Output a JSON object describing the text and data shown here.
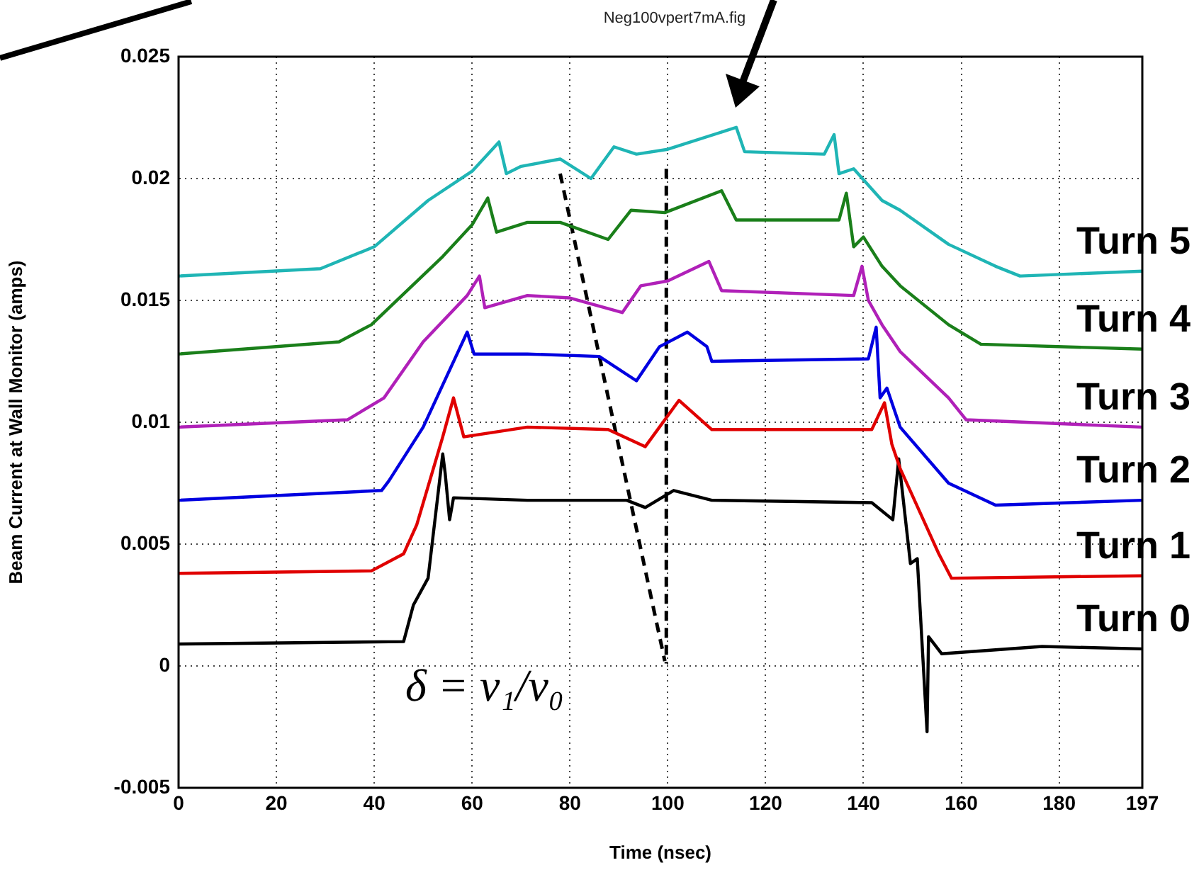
{
  "chart_data": {
    "type": "line",
    "title": "Neg100vpert7mA.fig",
    "xlabel": "Time (nsec)",
    "ylabel": "Beam Current at Wall Monitor (amps)",
    "xlim": [
      0,
      197
    ],
    "xticks": [
      0,
      20,
      40,
      60,
      80,
      100,
      120,
      140,
      160,
      180,
      197
    ],
    "ylim": [
      -0.005,
      0.025
    ],
    "yticks": [
      -0.005,
      0,
      0.005,
      0.01,
      0.015,
      0.02,
      0.025
    ],
    "grid": true,
    "legend": false,
    "marker": "none",
    "line_style": "solid",
    "annotations": [
      "δ = v₁/v₀"
    ],
    "series": [
      {
        "name": "Turn 5",
        "color": "#1fb5b5",
        "x": [
          0,
          29,
          40,
          51,
          60,
          65.5,
          67,
          70,
          78,
          84.3,
          89,
          93.6,
          100,
          114,
          115.7,
          132,
          134,
          135,
          138,
          143.8,
          147.5,
          157.4,
          167,
          172,
          197
        ],
        "values": [
          0.016,
          0.0163,
          0.0172,
          0.0191,
          0.0203,
          0.0215,
          0.0202,
          0.0205,
          0.0208,
          0.02,
          0.0213,
          0.021,
          0.0212,
          0.0221,
          0.0211,
          0.021,
          0.0218,
          0.0202,
          0.0204,
          0.0191,
          0.0187,
          0.0173,
          0.0164,
          0.016,
          0.0162
        ]
      },
      {
        "name": "Turn 4",
        "color": "#1a7f1a",
        "x": [
          0,
          32.8,
          39.4,
          54,
          60,
          63.2,
          65,
          71.3,
          78,
          87.8,
          92.5,
          99.4,
          111,
          114,
          135,
          136.5,
          138,
          140,
          143.8,
          147.5,
          157.4,
          164,
          197
        ],
        "values": [
          0.0128,
          0.0133,
          0.014,
          0.0168,
          0.0181,
          0.0192,
          0.0178,
          0.0182,
          0.0182,
          0.0175,
          0.0187,
          0.0186,
          0.0195,
          0.0183,
          0.0183,
          0.0194,
          0.0172,
          0.0176,
          0.0164,
          0.0156,
          0.014,
          0.0132,
          0.013
        ]
      },
      {
        "name": "Turn 3",
        "color": "#b020b8",
        "x": [
          0,
          34.5,
          42,
          50,
          59,
          61.5,
          62.6,
          71.3,
          80,
          90.7,
          94.5,
          100,
          108.4,
          111,
          138,
          139.7,
          141,
          143.8,
          147.5,
          157.4,
          161,
          197
        ],
        "values": [
          0.0098,
          0.0101,
          0.011,
          0.0133,
          0.0152,
          0.016,
          0.0147,
          0.0152,
          0.0151,
          0.0145,
          0.0156,
          0.0158,
          0.0166,
          0.0154,
          0.0152,
          0.0164,
          0.015,
          0.014,
          0.0129,
          0.011,
          0.0101,
          0.0098
        ]
      },
      {
        "name": "Turn 2",
        "color": "#0000e0",
        "x": [
          0,
          41.5,
          43,
          50,
          59,
          60.4,
          71.3,
          86,
          93.6,
          98.3,
          104,
          108,
          109,
          141,
          142.6,
          143.4,
          144.8,
          147.5,
          157.4,
          167,
          197
        ],
        "values": [
          0.0068,
          0.0072,
          0.0076,
          0.0098,
          0.0137,
          0.0128,
          0.0128,
          0.0127,
          0.0117,
          0.0131,
          0.0137,
          0.0131,
          0.0125,
          0.0126,
          0.0139,
          0.011,
          0.0114,
          0.0098,
          0.0075,
          0.0066,
          0.0068
        ]
      },
      {
        "name": "Turn 1",
        "color": "#e00000",
        "x": [
          0,
          39.4,
          46,
          48.7,
          54,
          56.2,
          58.3,
          71.3,
          87.8,
          95.4,
          102.3,
          109,
          141.7,
          144.3,
          145.8,
          147.5,
          155.4,
          158,
          197
        ],
        "values": [
          0.0038,
          0.0039,
          0.0046,
          0.0058,
          0.0094,
          0.011,
          0.0094,
          0.0098,
          0.0097,
          0.009,
          0.0109,
          0.0097,
          0.0097,
          0.0108,
          0.0091,
          0.0081,
          0.0046,
          0.0036,
          0.0037
        ]
      },
      {
        "name": "Turn 0",
        "color": "#000000",
        "x": [
          0,
          46,
          48,
          51,
          54,
          54.5,
          55.4,
          56.2,
          71.3,
          91.6,
          95.4,
          101.2,
          109,
          141.7,
          146,
          147.2,
          149.6,
          151,
          153,
          153.3,
          156,
          176.5,
          197
        ],
        "values": [
          0.0009,
          0.001,
          0.0025,
          0.0036,
          0.0087,
          0.0079,
          0.006,
          0.0069,
          0.0068,
          0.0068,
          0.0065,
          0.0072,
          0.0068,
          0.0067,
          0.006,
          0.0085,
          0.0042,
          0.0044,
          -0.0027,
          0.0012,
          0.0005,
          0.0008,
          0.0007
        ]
      },
      {
        "type": "line",
        "color": "#000000",
        "line_style": "dashed",
        "x": [
          78,
          99.4
        ],
        "values": [
          0.0202,
          0.0002
        ]
      },
      {
        "type": "line",
        "color": "#000000",
        "line_style": "dashed",
        "x": [
          99.7,
          99.7
        ],
        "values": [
          0.0204,
          0.0001
        ]
      }
    ]
  }
}
